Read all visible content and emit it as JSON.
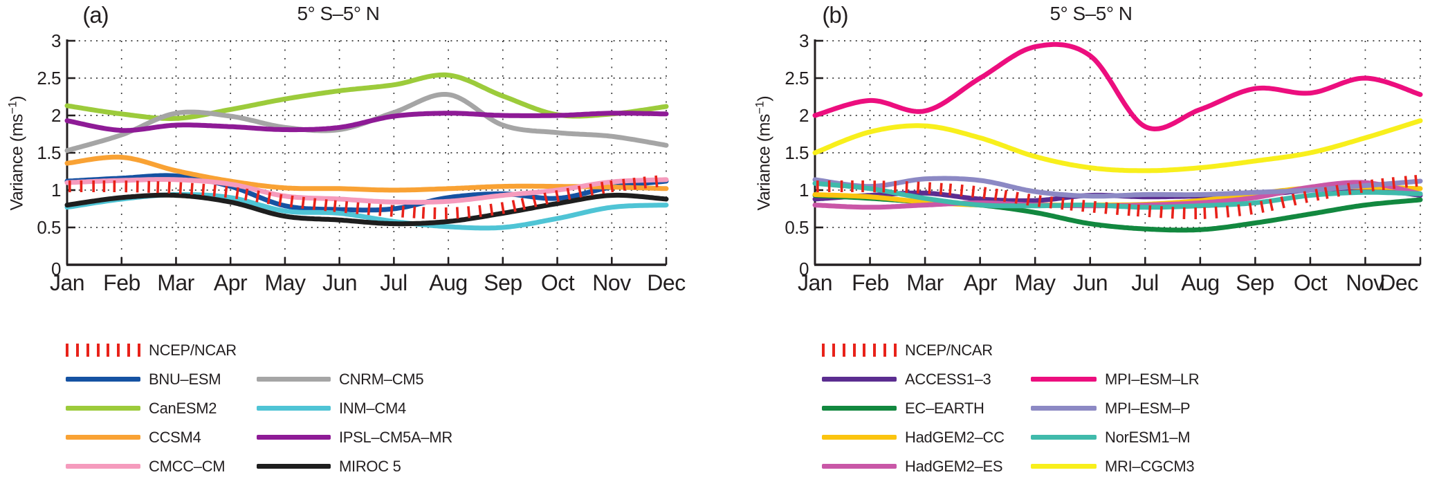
{
  "figure": {
    "background": "#ffffff",
    "text_color": "#231F20",
    "ncep_red": "#E8221A"
  },
  "months": [
    "Jan",
    "Feb",
    "Mar",
    "Apr",
    "May",
    "Jun",
    "Jul",
    "Aug",
    "Sep",
    "Oct",
    "Nov",
    "Dec"
  ],
  "ytick_labels": [
    "3",
    "2.5",
    "2",
    "1.5",
    "1",
    "0.5",
    "0"
  ],
  "ytick_values": [
    3,
    2.5,
    2,
    1.5,
    1,
    0.5,
    0
  ],
  "chart_data": [
    {
      "type": "line",
      "panel_label": "(a)",
      "title": "5° S–5° N",
      "ylabel": {
        "prefix": "Variance (ms",
        "sup": "−1",
        "suffix": ")"
      },
      "xlabel": "",
      "x_categories": [
        "Jan",
        "Feb",
        "Mar",
        "Apr",
        "May",
        "Jun",
        "Jul",
        "Aug",
        "Sep",
        "Oct",
        "Nov",
        "Dec"
      ],
      "ylim": [
        0,
        3
      ],
      "grid": "dotted",
      "legend_position": "below",
      "series": [
        {
          "name": "BNU–ESM",
          "color": "#1552A2",
          "style": "line",
          "values": [
            1.12,
            1.16,
            1.19,
            1.05,
            0.79,
            0.74,
            0.75,
            0.9,
            0.95,
            0.89,
            1.04,
            1.12
          ]
        },
        {
          "name": "CanESM2",
          "color": "#9CCB3B",
          "style": "line",
          "values": [
            2.13,
            2.02,
            1.96,
            2.08,
            2.22,
            2.33,
            2.41,
            2.54,
            2.26,
            2.01,
            2.02,
            2.12
          ]
        },
        {
          "name": "CCSM4",
          "color": "#F9A234",
          "style": "line",
          "values": [
            1.36,
            1.44,
            1.26,
            1.12,
            1.03,
            1.02,
            1.0,
            1.02,
            1.05,
            1.05,
            1.04,
            1.02
          ]
        },
        {
          "name": "CMCC–CM",
          "color": "#F59BBD",
          "style": "line",
          "values": [
            1.1,
            1.13,
            1.14,
            1.08,
            0.92,
            0.88,
            0.84,
            0.85,
            0.93,
            1.0,
            1.11,
            1.14
          ]
        },
        {
          "name": "CNRM–CM5",
          "color": "#A5A5A5",
          "style": "line",
          "values": [
            1.53,
            1.74,
            2.03,
            1.99,
            1.84,
            1.81,
            2.04,
            2.28,
            1.87,
            1.77,
            1.72,
            1.6
          ]
        },
        {
          "name": "INM–CM4",
          "color": "#4FC4D5",
          "style": "line",
          "values": [
            0.77,
            0.88,
            0.94,
            0.9,
            0.72,
            0.69,
            0.58,
            0.51,
            0.5,
            0.62,
            0.77,
            0.8
          ]
        },
        {
          "name": "IPSL–CM5A–MR",
          "color": "#8E1B96",
          "style": "line",
          "values": [
            1.93,
            1.8,
            1.87,
            1.85,
            1.81,
            1.84,
            1.99,
            2.03,
            2.0,
            2.0,
            2.03,
            2.02
          ]
        },
        {
          "name": "MIROC 5",
          "color": "#1E1E1E",
          "style": "line",
          "values": [
            0.8,
            0.9,
            0.93,
            0.84,
            0.65,
            0.6,
            0.55,
            0.58,
            0.69,
            0.82,
            0.93,
            0.88
          ]
        },
        {
          "name": "NCEP/NCAR",
          "color": "#E8221A",
          "style": "vticks",
          "values": [
            1.05,
            1.05,
            1.03,
            0.97,
            0.86,
            0.78,
            0.72,
            0.69,
            0.76,
            0.92,
            1.05,
            1.13
          ]
        }
      ],
      "legend_columns": [
        [
          "NCEP/NCAR",
          "BNU–ESM",
          "CanESM2",
          "CCSM4",
          "CMCC–CM"
        ],
        [
          "CNRM–CM5",
          "INM–CM4",
          "IPSL–CM5A–MR",
          "MIROC 5"
        ]
      ]
    },
    {
      "type": "line",
      "panel_label": "(b)",
      "title": "5° S–5° N",
      "ylabel": {
        "prefix": "Variance (ms",
        "sup": "−1",
        "suffix": ")"
      },
      "xlabel": "",
      "x_categories": [
        "Jan",
        "Feb",
        "Mar",
        "Apr",
        "May",
        "Jun",
        "Jul",
        "Aug",
        "Sep",
        "Oct",
        "Nov",
        "Dec"
      ],
      "ylim": [
        0,
        3
      ],
      "grid": "dotted",
      "legend_position": "below",
      "series": [
        {
          "name": "ACCESS1–3",
          "color": "#5B2D90",
          "style": "line",
          "values": [
            0.88,
            0.93,
            0.96,
            0.88,
            0.86,
            0.93,
            0.91,
            0.92,
            0.93,
            1.0,
            1.02,
            0.93
          ]
        },
        {
          "name": "EC–EARTH",
          "color": "#12883F",
          "style": "line",
          "values": [
            0.93,
            0.89,
            0.84,
            0.8,
            0.7,
            0.55,
            0.48,
            0.47,
            0.56,
            0.68,
            0.8,
            0.87
          ]
        },
        {
          "name": "HadGEM2–CC",
          "color": "#FBC40F",
          "style": "line",
          "values": [
            0.94,
            0.91,
            0.84,
            0.8,
            0.8,
            0.8,
            0.81,
            0.86,
            0.95,
            1.03,
            1.04,
            1.02
          ]
        },
        {
          "name": "HadGEM2–ES",
          "color": "#C957A7",
          "style": "line",
          "values": [
            0.8,
            0.77,
            0.8,
            0.83,
            0.8,
            0.79,
            0.8,
            0.83,
            0.9,
            1.04,
            1.1,
            0.95
          ]
        },
        {
          "name": "MPI–ESM–LR",
          "color": "#EC0E7E",
          "style": "line",
          "values": [
            2.0,
            2.2,
            2.06,
            2.5,
            2.92,
            2.8,
            1.85,
            2.08,
            2.36,
            2.3,
            2.5,
            2.28
          ]
        },
        {
          "name": "MPI–ESM–P",
          "color": "#8C89C4",
          "style": "line",
          "values": [
            1.14,
            1.05,
            1.15,
            1.13,
            0.98,
            0.92,
            0.94,
            0.94,
            0.97,
            1.0,
            1.06,
            1.12
          ]
        },
        {
          "name": "NorESM1–M",
          "color": "#40BAAB",
          "style": "line",
          "values": [
            1.09,
            1.02,
            0.89,
            0.8,
            0.79,
            0.8,
            0.77,
            0.79,
            0.83,
            0.93,
            0.97,
            0.95
          ]
        },
        {
          "name": "MRI–CGCM3",
          "color": "#F8EF1C",
          "style": "line",
          "values": [
            1.5,
            1.78,
            1.86,
            1.7,
            1.45,
            1.3,
            1.26,
            1.3,
            1.39,
            1.5,
            1.7,
            1.93
          ]
        },
        {
          "name": "NCEP/NCAR",
          "color": "#E8221A",
          "style": "vticks",
          "values": [
            1.05,
            1.05,
            1.03,
            0.97,
            0.86,
            0.78,
            0.72,
            0.69,
            0.76,
            0.92,
            1.05,
            1.13
          ]
        }
      ],
      "legend_columns": [
        [
          "NCEP/NCAR",
          "ACCESS1–3",
          "EC–EARTH",
          "HadGEM2–CC",
          "HadGEM2–ES"
        ],
        [
          "MPI–ESM–LR",
          "MPI–ESM–P",
          "NorESM1–M",
          "MRI–CGCM3"
        ]
      ]
    }
  ]
}
